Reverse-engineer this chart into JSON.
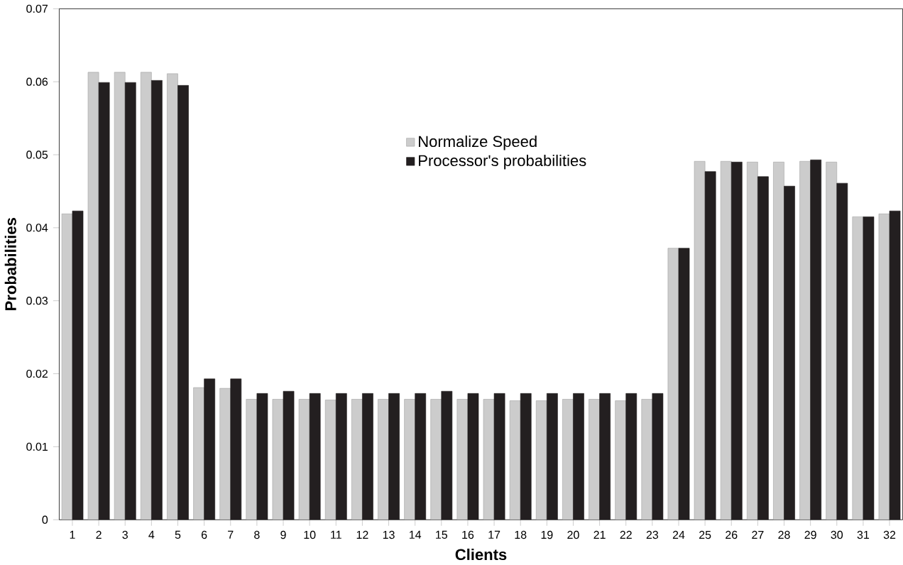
{
  "chart_data": {
    "type": "bar",
    "xlabel": "Clients",
    "ylabel": "Probabilities",
    "categories": [
      "1",
      "2",
      "3",
      "4",
      "5",
      "6",
      "7",
      "8",
      "9",
      "10",
      "11",
      "12",
      "13",
      "14",
      "15",
      "16",
      "17",
      "18",
      "19",
      "20",
      "21",
      "22",
      "23",
      "24",
      "25",
      "26",
      "27",
      "28",
      "29",
      "30",
      "31",
      "32"
    ],
    "series": [
      {
        "name": "Normalize Speed",
        "color": "#cccccc",
        "values": [
          0.0419,
          0.0613,
          0.0613,
          0.0613,
          0.0611,
          0.0181,
          0.018,
          0.0165,
          0.0165,
          0.0165,
          0.0164,
          0.0165,
          0.0165,
          0.0165,
          0.0165,
          0.0165,
          0.0165,
          0.0163,
          0.0163,
          0.0165,
          0.0165,
          0.0163,
          0.0165,
          0.0372,
          0.0491,
          0.0491,
          0.049,
          0.049,
          0.0491,
          0.049,
          0.0415,
          0.0419
        ]
      },
      {
        "name": "Processor's probabilities",
        "color": "#231f20",
        "values": [
          0.0423,
          0.0599,
          0.0599,
          0.0602,
          0.0595,
          0.0193,
          0.0193,
          0.0173,
          0.0176,
          0.0173,
          0.0173,
          0.0173,
          0.0173,
          0.0173,
          0.0176,
          0.0173,
          0.0173,
          0.0173,
          0.0173,
          0.0173,
          0.0173,
          0.0173,
          0.0173,
          0.0372,
          0.0477,
          0.049,
          0.047,
          0.0457,
          0.0493,
          0.0461,
          0.0415,
          0.0423
        ]
      }
    ],
    "ylim": [
      0,
      0.07
    ],
    "yticks": [
      0,
      0.01,
      0.02,
      0.03,
      0.04,
      0.05,
      0.06,
      0.07
    ],
    "legend": "center"
  }
}
